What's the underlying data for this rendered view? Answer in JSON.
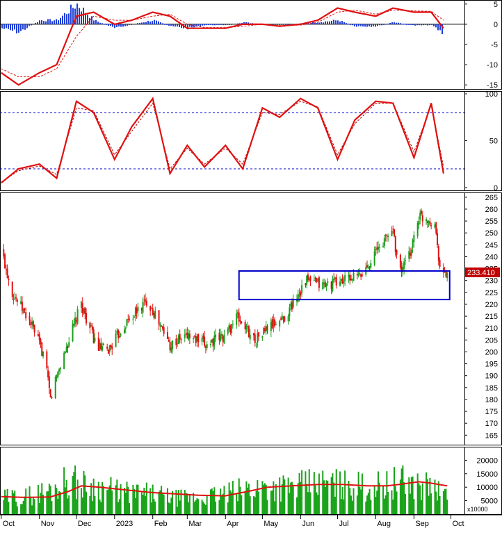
{
  "colors": {
    "up": "#1a9e1a",
    "down": "#e01010",
    "signal": "#e01010",
    "macd_pos": "#1f3fd6",
    "macd_neg": "#1f3fd6",
    "volume": "#1aa31a",
    "volume_ma": "#e01010",
    "box": "#0000cc",
    "stoch_level": "#0000cc",
    "price_tag_bg": "#c00000",
    "price_tag_text": "#ffffff"
  },
  "chart_data": [
    {
      "panel": "macd",
      "type": "line",
      "ylim": [
        -16,
        6
      ],
      "yticks": [
        "5",
        "0",
        "-5",
        "-10",
        "-15"
      ],
      "x": [
        "2022-10-01",
        "2022-10-15",
        "2022-11-01",
        "2022-11-15",
        "2022-12-01",
        "2022-12-15",
        "2023-01-01",
        "2023-01-15",
        "2023-02-01",
        "2023-02-15",
        "2023-03-01",
        "2023-03-15",
        "2023-04-01",
        "2023-04-15",
        "2023-05-01",
        "2023-05-15",
        "2023-06-01",
        "2023-06-15",
        "2023-07-01",
        "2023-07-15",
        "2023-08-01",
        "2023-08-15",
        "2023-09-01",
        "2023-09-15",
        "2023-09-25"
      ],
      "series": [
        {
          "role": "macd",
          "values": [
            -12,
            -15,
            -12,
            -10,
            2,
            3,
            0,
            1,
            3,
            2,
            -1,
            -1,
            -1,
            0,
            0,
            -0.5,
            0,
            1,
            4,
            3,
            2,
            4,
            3,
            3,
            -1
          ]
        },
        {
          "role": "signal",
          "values": [
            -11,
            -13,
            -13,
            -11,
            -3,
            2,
            1,
            1,
            2,
            2.5,
            0,
            -0.8,
            -0.8,
            -0.5,
            0,
            -0.3,
            -0.2,
            0.5,
            3,
            3.5,
            2.5,
            3.5,
            3.3,
            3.2,
            1
          ]
        },
        {
          "role": "histogram",
          "values": [
            -1,
            -2,
            1,
            1,
            5,
            1,
            -1,
            0,
            1,
            -0.5,
            -1,
            -0.2,
            -0.2,
            0.5,
            0,
            -0.2,
            0.2,
            0.5,
            1,
            -0.5,
            -0.5,
            0.5,
            -0.3,
            -0.2,
            -2.5
          ]
        }
      ]
    },
    {
      "panel": "stochastic",
      "type": "line",
      "ylim": [
        -3,
        103
      ],
      "yticks": [
        "100",
        "50",
        "0"
      ],
      "levels": [
        80,
        20
      ],
      "x": [
        "2022-10-01",
        "2022-10-15",
        "2022-11-01",
        "2022-11-15",
        "2022-12-01",
        "2022-12-15",
        "2023-01-01",
        "2023-01-15",
        "2023-02-01",
        "2023-02-15",
        "2023-03-01",
        "2023-03-15",
        "2023-04-01",
        "2023-04-15",
        "2023-05-01",
        "2023-05-15",
        "2023-06-01",
        "2023-06-15",
        "2023-07-01",
        "2023-07-15",
        "2023-08-01",
        "2023-08-15",
        "2023-09-01",
        "2023-09-15",
        "2023-09-25"
      ],
      "series": [
        {
          "role": "k",
          "values": [
            5,
            20,
            25,
            10,
            92,
            80,
            30,
            65,
            95,
            15,
            45,
            22,
            45,
            20,
            85,
            75,
            95,
            85,
            30,
            72,
            92,
            90,
            32,
            90,
            15
          ]
        },
        {
          "role": "d",
          "values": [
            6,
            18,
            23,
            14,
            85,
            82,
            35,
            60,
            90,
            20,
            42,
            25,
            42,
            25,
            80,
            78,
            92,
            86,
            35,
            68,
            90,
            90,
            38,
            88,
            22
          ]
        }
      ]
    },
    {
      "panel": "price",
      "type": "candlestick",
      "ylim": [
        161,
        267
      ],
      "yticks": [
        "265",
        "260",
        "255",
        "250",
        "245",
        "240",
        "235",
        "230",
        "225",
        "220",
        "215",
        "210",
        "205",
        "200",
        "195",
        "190",
        "185",
        "180",
        "175",
        "170",
        "165"
      ],
      "last_price_label": "233.410",
      "box": {
        "price_top": 234,
        "price_bottom": 222,
        "start": "2023-04-12",
        "end": "2023-09-30"
      },
      "keypoints": {
        "dates": [
          "2022-10-01",
          "2022-10-10",
          "2022-10-25",
          "2022-11-05",
          "2022-11-10",
          "2022-11-15",
          "2022-11-25",
          "2022-12-05",
          "2022-12-12",
          "2022-12-18",
          "2022-12-26",
          "2023-01-10",
          "2023-01-28",
          "2023-02-06",
          "2023-02-15",
          "2023-03-01",
          "2023-03-15",
          "2023-04-01",
          "2023-04-10",
          "2023-04-25",
          "2023-05-05",
          "2023-05-20",
          "2023-06-05",
          "2023-06-20",
          "2023-07-05",
          "2023-07-20",
          "2023-08-01",
          "2023-08-15",
          "2023-08-20",
          "2023-08-28",
          "2023-09-05",
          "2023-09-12",
          "2023-09-18",
          "2023-09-23",
          "2023-09-28"
        ],
        "closes": [
          243,
          225,
          212,
          198,
          180,
          190,
          205,
          220,
          210,
          202,
          200,
          212,
          222,
          212,
          203,
          207,
          203,
          207,
          215,
          205,
          210,
          215,
          230,
          228,
          230,
          232,
          242,
          252,
          233,
          240,
          257,
          256,
          254,
          232,
          233
        ]
      }
    },
    {
      "panel": "volume",
      "type": "bar",
      "unit": "x10000",
      "ylim": [
        0,
        25000
      ],
      "yticks": [
        "20000",
        "15000",
        "10000",
        "5000"
      ],
      "keypoints": {
        "dates": [
          "2022-10-01",
          "2022-10-20",
          "2022-11-10",
          "2022-11-25",
          "2022-12-05",
          "2022-12-20",
          "2023-01-10",
          "2023-02-01",
          "2023-02-20",
          "2023-03-10",
          "2023-04-01",
          "2023-04-20",
          "2023-05-05",
          "2023-05-25",
          "2023-06-15",
          "2023-07-05",
          "2023-07-25",
          "2023-08-10",
          "2023-08-20",
          "2023-09-05",
          "2023-09-15",
          "2023-09-28"
        ],
        "volume": [
          6000,
          6500,
          9000,
          13000,
          11000,
          10000,
          8000,
          7500,
          6000,
          6000,
          7500,
          9500,
          10500,
          10000,
          11500,
          11000,
          10000,
          11000,
          12000,
          11000,
          10500,
          6000
        ],
        "ma": [
          6500,
          6200,
          6400,
          8500,
          10500,
          10000,
          9000,
          8000,
          7500,
          7000,
          6800,
          8500,
          10000,
          10500,
          11000,
          11000,
          10500,
          10500,
          11000,
          12000,
          11500,
          10500
        ]
      }
    }
  ],
  "x_axis": {
    "labels": [
      {
        "text": "Oct",
        "date": "2022-10-01"
      },
      {
        "text": "Nov",
        "date": "2022-11-01"
      },
      {
        "text": "Dec",
        "date": "2022-12-01"
      },
      {
        "text": "2023",
        "date": "2023-01-01"
      },
      {
        "text": "Feb",
        "date": "2023-02-01"
      },
      {
        "text": "Mar",
        "date": "2023-03-01"
      },
      {
        "text": "Apr",
        "date": "2023-04-01"
      },
      {
        "text": "May",
        "date": "2023-05-01"
      },
      {
        "text": "Jun",
        "date": "2023-06-01"
      },
      {
        "text": "Jul",
        "date": "2023-07-01"
      },
      {
        "text": "Aug",
        "date": "2023-08-01"
      },
      {
        "text": "Sep",
        "date": "2023-09-01"
      },
      {
        "text": "Oct",
        "date": "2023-10-01"
      }
    ]
  }
}
